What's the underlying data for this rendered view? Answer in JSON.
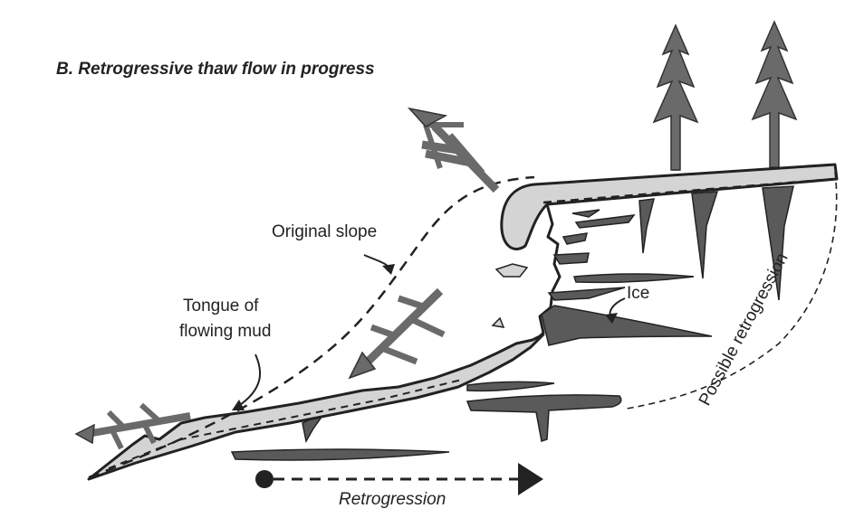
{
  "title": "B.  Retrogressive thaw flow in progress",
  "labels": {
    "original_slope": "Original slope",
    "tongue_line1": "Tongue of",
    "tongue_line2": "flowing mud",
    "ice": "Ice",
    "possible_retrogression": "Possible retrogression",
    "retrogression": "Retrogression"
  },
  "colors": {
    "ink": "#222222",
    "ice": "#5a5a5a",
    "mud": "#d4d4d4",
    "arrow": "#6a6a6a",
    "tree": "#6a6a6a"
  },
  "icons": {
    "tree": "conifer-tree-icon",
    "flow_arrow": "branching-flow-arrow-icon",
    "retrogression_arrow": "dashed-right-arrow-icon"
  }
}
